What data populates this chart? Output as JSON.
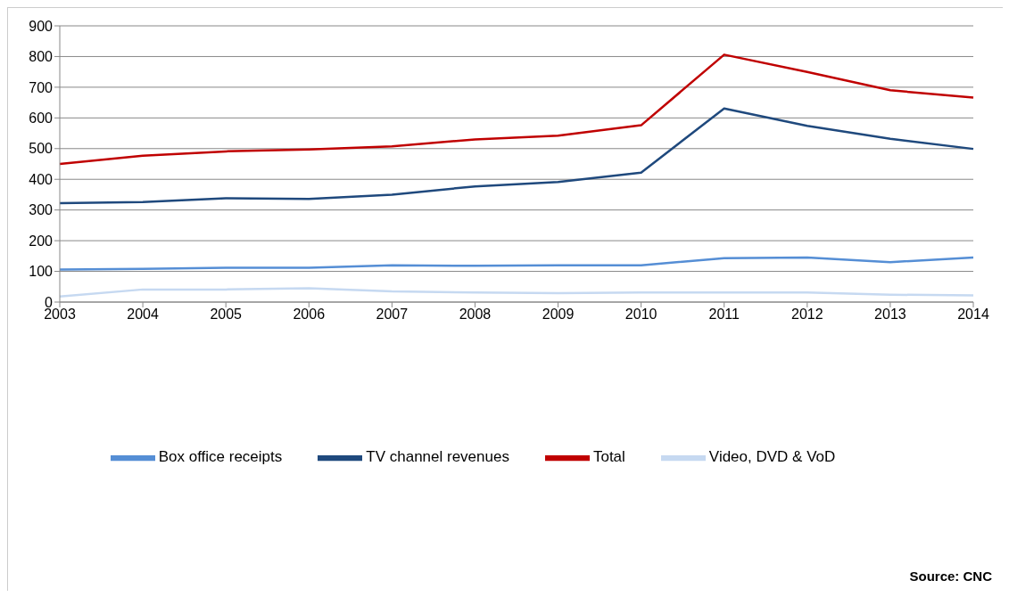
{
  "chart_data": {
    "type": "line",
    "categories": [
      "2003",
      "2004",
      "2005",
      "2006",
      "2007",
      "2008",
      "2009",
      "2010",
      "2011",
      "2012",
      "2013",
      "2014"
    ],
    "series": [
      {
        "name": "Box office receipts",
        "color": "#558ed5",
        "values": [
          106,
          108,
          112,
          112,
          120,
          118,
          120,
          120,
          143,
          145,
          130,
          145
        ]
      },
      {
        "name": "TV channel revenues",
        "color": "#1f497d",
        "values": [
          322,
          326,
          338,
          336,
          350,
          377,
          391,
          422,
          631,
          574,
          532,
          499
        ]
      },
      {
        "name": "Video, DVD & VoD",
        "color": "#c6d9f1",
        "values": [
          18,
          41,
          41,
          45,
          35,
          31,
          29,
          31,
          31,
          31,
          24,
          22
        ]
      },
      {
        "name": "Total",
        "color": "#c00000",
        "values": [
          450,
          477,
          491,
          497,
          507,
          530,
          542,
          576,
          806,
          750,
          690,
          666
        ]
      }
    ],
    "ylim": [
      0,
      900
    ],
    "yticks": [
      0,
      100,
      200,
      300,
      400,
      500,
      600,
      700,
      800,
      900
    ],
    "grid": "y",
    "legend": "bottom",
    "marker": "none",
    "line_style": "solid",
    "annotations": [
      "Source: CNC"
    ]
  }
}
